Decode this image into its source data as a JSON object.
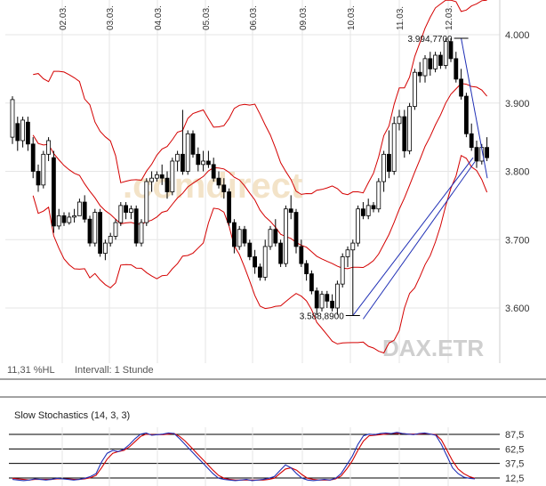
{
  "chart_data": {
    "type": "candlestick",
    "instrument": "DAX.ETR",
    "watermark": ".comdirect",
    "info": {
      "range": "11,31 %HL",
      "interval": "Intervall: 1 Stunde"
    },
    "x_dates": [
      "02.03.",
      "03.03.",
      "04.03.",
      "05.03.",
      "06.03.",
      "09.03.",
      "10.03.",
      "11.03.",
      "12.03."
    ],
    "ylim": [
      3520,
      4040
    ],
    "y_ticks": [
      3600,
      3700,
      3800,
      3900,
      4000
    ],
    "y_tick_labels": [
      "3.600",
      "3.700",
      "3.800",
      "3.900",
      "4.000"
    ],
    "annotations": [
      {
        "label": "3.994,7700",
        "value": 3994.77,
        "bar": 87
      },
      {
        "label": "3.588,8900",
        "value": 3588.89,
        "bar": 66
      }
    ],
    "candles": [
      {
        "o": 3850,
        "h": 3910,
        "l": 3840,
        "c": 3905
      },
      {
        "o": 3870,
        "h": 3880,
        "l": 3830,
        "c": 3845
      },
      {
        "o": 3845,
        "h": 3880,
        "l": 3835,
        "c": 3875
      },
      {
        "o": 3872,
        "h": 3880,
        "l": 3830,
        "c": 3840
      },
      {
        "o": 3840,
        "h": 3850,
        "l": 3790,
        "c": 3800
      },
      {
        "o": 3800,
        "h": 3810,
        "l": 3770,
        "c": 3780
      },
      {
        "o": 3780,
        "h": 3830,
        "l": 3775,
        "c": 3825
      },
      {
        "o": 3825,
        "h": 3850,
        "l": 3815,
        "c": 3845
      },
      {
        "o": 3820,
        "h": 3830,
        "l": 3710,
        "c": 3720
      },
      {
        "o": 3720,
        "h": 3745,
        "l": 3715,
        "c": 3735
      },
      {
        "o": 3735,
        "h": 3740,
        "l": 3720,
        "c": 3725
      },
      {
        "o": 3725,
        "h": 3740,
        "l": 3722,
        "c": 3733
      },
      {
        "o": 3733,
        "h": 3745,
        "l": 3725,
        "c": 3735
      },
      {
        "o": 3735,
        "h": 3760,
        "l": 3735,
        "c": 3755
      },
      {
        "o": 3755,
        "h": 3765,
        "l": 3725,
        "c": 3730
      },
      {
        "o": 3730,
        "h": 3735,
        "l": 3690,
        "c": 3695
      },
      {
        "o": 3695,
        "h": 3745,
        "l": 3690,
        "c": 3740
      },
      {
        "o": 3740,
        "h": 3745,
        "l": 3675,
        "c": 3680
      },
      {
        "o": 3680,
        "h": 3700,
        "l": 3670,
        "c": 3695
      },
      {
        "o": 3695,
        "h": 3710,
        "l": 3690,
        "c": 3705
      },
      {
        "o": 3705,
        "h": 3730,
        "l": 3700,
        "c": 3725
      },
      {
        "o": 3725,
        "h": 3755,
        "l": 3720,
        "c": 3750
      },
      {
        "o": 3750,
        "h": 3755,
        "l": 3730,
        "c": 3740
      },
      {
        "o": 3740,
        "h": 3750,
        "l": 3730,
        "c": 3745
      },
      {
        "o": 3745,
        "h": 3750,
        "l": 3690,
        "c": 3695
      },
      {
        "o": 3695,
        "h": 3730,
        "l": 3690,
        "c": 3725
      },
      {
        "o": 3725,
        "h": 3790,
        "l": 3720,
        "c": 3785
      },
      {
        "o": 3785,
        "h": 3800,
        "l": 3770,
        "c": 3790
      },
      {
        "o": 3790,
        "h": 3800,
        "l": 3785,
        "c": 3795
      },
      {
        "o": 3795,
        "h": 3810,
        "l": 3780,
        "c": 3790
      },
      {
        "o": 3790,
        "h": 3800,
        "l": 3760,
        "c": 3770
      },
      {
        "o": 3770,
        "h": 3820,
        "l": 3765,
        "c": 3815
      },
      {
        "o": 3815,
        "h": 3830,
        "l": 3800,
        "c": 3825
      },
      {
        "o": 3825,
        "h": 3890,
        "l": 3795,
        "c": 3800
      },
      {
        "o": 3800,
        "h": 3860,
        "l": 3795,
        "c": 3855
      },
      {
        "o": 3855,
        "h": 3860,
        "l": 3820,
        "c": 3825
      },
      {
        "o": 3825,
        "h": 3835,
        "l": 3800,
        "c": 3810
      },
      {
        "o": 3810,
        "h": 3830,
        "l": 3800,
        "c": 3815
      },
      {
        "o": 3815,
        "h": 3830,
        "l": 3805,
        "c": 3810
      },
      {
        "o": 3810,
        "h": 3820,
        "l": 3785,
        "c": 3790
      },
      {
        "o": 3790,
        "h": 3800,
        "l": 3775,
        "c": 3780
      },
      {
        "o": 3780,
        "h": 3790,
        "l": 3760,
        "c": 3770
      },
      {
        "o": 3770,
        "h": 3775,
        "l": 3720,
        "c": 3725
      },
      {
        "o": 3725,
        "h": 3730,
        "l": 3680,
        "c": 3690
      },
      {
        "o": 3690,
        "h": 3720,
        "l": 3685,
        "c": 3715
      },
      {
        "o": 3715,
        "h": 3720,
        "l": 3690,
        "c": 3695
      },
      {
        "o": 3695,
        "h": 3700,
        "l": 3670,
        "c": 3675
      },
      {
        "o": 3675,
        "h": 3685,
        "l": 3650,
        "c": 3660
      },
      {
        "o": 3660,
        "h": 3665,
        "l": 3640,
        "c": 3645
      },
      {
        "o": 3645,
        "h": 3700,
        "l": 3640,
        "c": 3690
      },
      {
        "o": 3690,
        "h": 3720,
        "l": 3685,
        "c": 3715
      },
      {
        "o": 3715,
        "h": 3730,
        "l": 3690,
        "c": 3695
      },
      {
        "o": 3695,
        "h": 3700,
        "l": 3660,
        "c": 3665
      },
      {
        "o": 3665,
        "h": 3750,
        "l": 3660,
        "c": 3745
      },
      {
        "o": 3745,
        "h": 3765,
        "l": 3730,
        "c": 3740
      },
      {
        "o": 3740,
        "h": 3745,
        "l": 3680,
        "c": 3690
      },
      {
        "o": 3690,
        "h": 3700,
        "l": 3660,
        "c": 3665
      },
      {
        "o": 3665,
        "h": 3670,
        "l": 3640,
        "c": 3650
      },
      {
        "o": 3650,
        "h": 3655,
        "l": 3620,
        "c": 3625
      },
      {
        "o": 3625,
        "h": 3630,
        "l": 3590,
        "c": 3600
      },
      {
        "o": 3600,
        "h": 3625,
        "l": 3595,
        "c": 3620
      },
      {
        "o": 3620,
        "h": 3625,
        "l": 3600,
        "c": 3610
      },
      {
        "o": 3610,
        "h": 3620,
        "l": 3595,
        "c": 3600
      },
      {
        "o": 3600,
        "h": 3640,
        "l": 3590,
        "c": 3635
      },
      {
        "o": 3635,
        "h": 3680,
        "l": 3630,
        "c": 3675
      },
      {
        "o": 3675,
        "h": 3690,
        "l": 3660,
        "c": 3685
      },
      {
        "o": 3685,
        "h": 3700,
        "l": 3589,
        "c": 3695
      },
      {
        "o": 3695,
        "h": 3750,
        "l": 3690,
        "c": 3745
      },
      {
        "o": 3745,
        "h": 3755,
        "l": 3730,
        "c": 3735
      },
      {
        "o": 3735,
        "h": 3760,
        "l": 3730,
        "c": 3750
      },
      {
        "o": 3750,
        "h": 3755,
        "l": 3740,
        "c": 3745
      },
      {
        "o": 3745,
        "h": 3790,
        "l": 3740,
        "c": 3785
      },
      {
        "o": 3785,
        "h": 3830,
        "l": 3770,
        "c": 3825
      },
      {
        "o": 3825,
        "h": 3860,
        "l": 3790,
        "c": 3800
      },
      {
        "o": 3800,
        "h": 3880,
        "l": 3795,
        "c": 3870
      },
      {
        "o": 3870,
        "h": 3890,
        "l": 3860,
        "c": 3880
      },
      {
        "o": 3880,
        "h": 3890,
        "l": 3820,
        "c": 3830
      },
      {
        "o": 3830,
        "h": 3900,
        "l": 3825,
        "c": 3895
      },
      {
        "o": 3895,
        "h": 3950,
        "l": 3890,
        "c": 3945
      },
      {
        "o": 3945,
        "h": 3960,
        "l": 3930,
        "c": 3940
      },
      {
        "o": 3940,
        "h": 3970,
        "l": 3930,
        "c": 3965
      },
      {
        "o": 3965,
        "h": 3975,
        "l": 3940,
        "c": 3950
      },
      {
        "o": 3950,
        "h": 3975,
        "l": 3945,
        "c": 3970
      },
      {
        "o": 3970,
        "h": 3975,
        "l": 3950,
        "c": 3955
      },
      {
        "o": 3955,
        "h": 3995,
        "l": 3950,
        "c": 3990
      },
      {
        "o": 3990,
        "h": 3995,
        "l": 3960,
        "c": 3965
      },
      {
        "o": 3965,
        "h": 3975,
        "l": 3930,
        "c": 3935
      },
      {
        "o": 3935,
        "h": 3950,
        "l": 3905,
        "c": 3910
      },
      {
        "o": 3910,
        "h": 3915,
        "l": 3850,
        "c": 3855
      },
      {
        "o": 3855,
        "h": 3870,
        "l": 3830,
        "c": 3835
      },
      {
        "o": 3835,
        "h": 3845,
        "l": 3805,
        "c": 3815
      },
      {
        "o": 3815,
        "h": 3840,
        "l": 3810,
        "c": 3835
      },
      {
        "o": 3835,
        "h": 3850,
        "l": 3815,
        "c": 3820
      }
    ],
    "stochastic": {
      "title": "Slow Stochastics (14, 3, 3)",
      "ylim": [
        0,
        100
      ],
      "levels": [
        87.5,
        62.5,
        37.5,
        12.5
      ],
      "level_labels": [
        "87,5",
        "62,5",
        "37,5",
        "12,5"
      ],
      "k": [
        10,
        9,
        8,
        9,
        11,
        10,
        9,
        10,
        12,
        11,
        10,
        9,
        10,
        12,
        15,
        20,
        40,
        55,
        60,
        58,
        62,
        70,
        80,
        88,
        90,
        86,
        87,
        88,
        90,
        89,
        80,
        70,
        60,
        50,
        40,
        30,
        20,
        12,
        10,
        9,
        8,
        9,
        10,
        8,
        9,
        10,
        12,
        15,
        25,
        35,
        30,
        20,
        12,
        9,
        8,
        9,
        10,
        9,
        12,
        20,
        35,
        50,
        70,
        85,
        88,
        87,
        89,
        90,
        89,
        91,
        89,
        88,
        87,
        89,
        90,
        88,
        86,
        70,
        50,
        30,
        20,
        14,
        12,
        11
      ],
      "d": [
        12,
        11,
        10,
        9,
        10,
        10,
        10,
        10,
        11,
        11,
        11,
        10,
        10,
        11,
        13,
        17,
        30,
        45,
        55,
        58,
        60,
        66,
        75,
        84,
        88,
        87,
        87,
        87,
        88,
        89,
        84,
        76,
        66,
        56,
        46,
        36,
        26,
        17,
        12,
        10,
        9,
        9,
        9,
        9,
        9,
        9,
        10,
        12,
        20,
        28,
        30,
        26,
        18,
        12,
        10,
        9,
        9,
        9,
        11,
        16,
        28,
        42,
        60,
        76,
        85,
        86,
        87,
        88,
        89,
        89,
        89,
        88,
        88,
        88,
        89,
        88,
        87,
        78,
        60,
        42,
        28,
        20,
        15,
        12
      ]
    }
  }
}
